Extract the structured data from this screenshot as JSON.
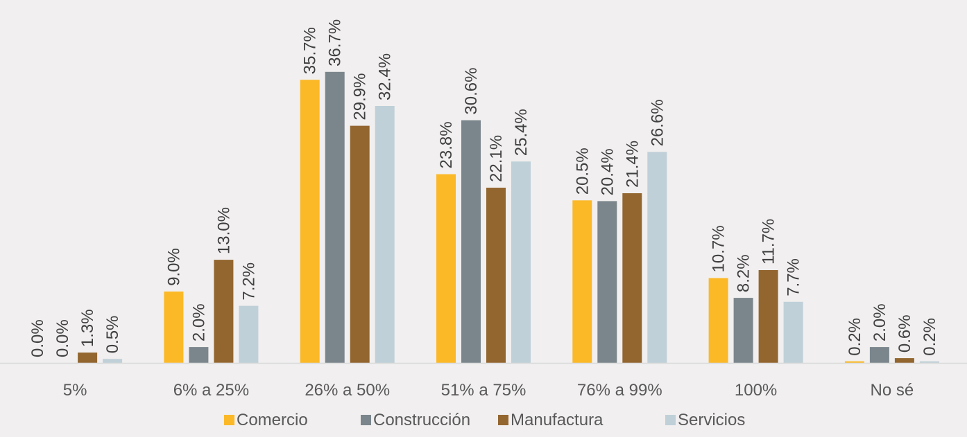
{
  "chart_data": {
    "type": "bar",
    "categories": [
      "5%",
      "6% a 25%",
      "26% a 50%",
      "51% a 75%",
      "76% a 99%",
      "100%",
      "No sé"
    ],
    "series": [
      {
        "name": "Comercio",
        "color": "#fbb928",
        "values": [
          0.0,
          9.0,
          35.7,
          23.8,
          20.5,
          10.7,
          0.2
        ],
        "labels": [
          "0.0%",
          "9.0%",
          "35.7%",
          "23.8%",
          "20.5%",
          "10.7%",
          "0.2%"
        ]
      },
      {
        "name": "Construcción",
        "color": "#7b868c",
        "values": [
          0.0,
          2.0,
          36.7,
          30.6,
          20.4,
          8.2,
          2.0
        ],
        "labels": [
          "0.0%",
          "2.0%",
          "36.7%",
          "30.6%",
          "20.4%",
          "8.2%",
          "2.0%"
        ]
      },
      {
        "name": "Manufactura",
        "color": "#936630",
        "values": [
          1.3,
          13.0,
          29.9,
          22.1,
          21.4,
          11.7,
          0.6
        ],
        "labels": [
          "1.3%",
          "13.0%",
          "29.9%",
          "22.1%",
          "21.4%",
          "11.7%",
          "0.6%"
        ]
      },
      {
        "name": "Servicios",
        "color": "#bfd0d8",
        "values": [
          0.5,
          7.2,
          32.4,
          25.4,
          26.6,
          7.7,
          0.2
        ],
        "labels": [
          "0.5%",
          "7.2%",
          "32.4%",
          "25.4%",
          "26.6%",
          "7.7%",
          "0.2%"
        ]
      }
    ],
    "title": "",
    "xlabel": "",
    "ylabel": "",
    "ylim": [
      0,
      40
    ],
    "grid": false,
    "legend_position": "bottom",
    "axis_color": "#d9d9d9"
  }
}
